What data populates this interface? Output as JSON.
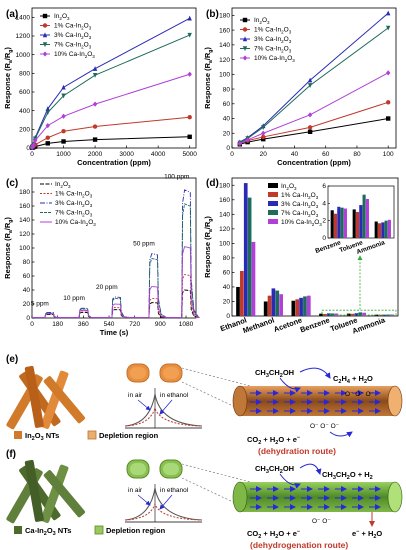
{
  "colors": {
    "In2O3": "#000000",
    "Ca1": "#c0392b",
    "Ca3": "#2a2ab5",
    "Ca7": "#1e6b5c",
    "Ca10": "#b040d8",
    "ntOrange": "#d07a2a",
    "ntGreen": "#5f7f3a",
    "tubeGreen": "#6aa83a",
    "arrowBlue": "#2828d8"
  },
  "chart_data": [
    {
      "panel": "(a)",
      "type": "line",
      "xlabel": "Concentration (ppm)",
      "ylabel": "Response (Ra/Rg)",
      "xlim": [
        0,
        5200
      ],
      "ylim": [
        0,
        1500
      ],
      "xticks": [
        0,
        1000,
        2000,
        3000,
        4000,
        5000
      ],
      "yticks": [
        0,
        200,
        400,
        600,
        800,
        1000,
        1200,
        1400
      ],
      "x": [
        5,
        10,
        20,
        50,
        100,
        500,
        1000,
        2000,
        5000
      ],
      "series": [
        {
          "name": "In2O3",
          "values": [
            3,
            4,
            6,
            10,
            15,
            50,
            70,
            90,
            120
          ]
        },
        {
          "name": "1% Ca-In2O3",
          "values": [
            5,
            7,
            10,
            20,
            35,
            110,
            180,
            230,
            330
          ]
        },
        {
          "name": "3% Ca-In2O3",
          "values": [
            8,
            12,
            20,
            45,
            110,
            420,
            650,
            850,
            1390
          ]
        },
        {
          "name": "7% Ca-In2O3",
          "values": [
            7,
            11,
            18,
            40,
            100,
            380,
            560,
            780,
            1210
          ]
        },
        {
          "name": "10% Ca-In2O3",
          "values": [
            6,
            9,
            14,
            30,
            80,
            240,
            340,
            470,
            790
          ]
        }
      ]
    },
    {
      "panel": "(b)",
      "type": "line",
      "xlabel": "Concentration (ppm)",
      "ylabel": "Response (Ra/Rg)",
      "xlim": [
        0,
        105
      ],
      "ylim": [
        0,
        190
      ],
      "xticks": [
        0,
        20,
        40,
        60,
        80,
        100
      ],
      "yticks": [
        0,
        20,
        40,
        60,
        80,
        100,
        120,
        140,
        160,
        180
      ],
      "x": [
        5,
        10,
        20,
        50,
        100
      ],
      "series": [
        {
          "name": "In2O3",
          "values": [
            5,
            8,
            12,
            22,
            40
          ]
        },
        {
          "name": "1% Ca-In2O3",
          "values": [
            6,
            10,
            15,
            28,
            62
          ]
        },
        {
          "name": "3% Ca-In2O3",
          "values": [
            8,
            14,
            30,
            92,
            183
          ]
        },
        {
          "name": "7% Ca-In2O3",
          "values": [
            7,
            13,
            28,
            85,
            163
          ]
        },
        {
          "name": "10% Ca-In2O3",
          "values": [
            6,
            11,
            20,
            45,
            102
          ]
        }
      ]
    },
    {
      "panel": "(c)",
      "type": "line",
      "xlabel": "Time (s)",
      "ylabel": "Response (Ra/Rg)",
      "xlim": [
        0,
        1150
      ],
      "ylim": [
        0,
        200
      ],
      "xticks": [
        0,
        180,
        360,
        540,
        720,
        900,
        1080
      ],
      "yticks": [
        0,
        20,
        40,
        60,
        80,
        100,
        120,
        140,
        160,
        180
      ],
      "pulses": [
        {
          "label": "5 ppm",
          "start": 90,
          "end": 150
        },
        {
          "label": "10 ppm",
          "start": 330,
          "end": 390
        },
        {
          "label": "20 ppm",
          "start": 560,
          "end": 620
        },
        {
          "label": "50 ppm",
          "start": 820,
          "end": 880
        },
        {
          "label": "100 ppm",
          "start": 1050,
          "end": 1110
        }
      ],
      "series": [
        {
          "name": "In2O3",
          "peaks": [
            5,
            8,
            12,
            22,
            40
          ]
        },
        {
          "name": "1% Ca-In2O3",
          "peaks": [
            6,
            10,
            15,
            28,
            62
          ]
        },
        {
          "name": "3% Ca-In2O3",
          "peaks": [
            8,
            14,
            30,
            92,
            183
          ]
        },
        {
          "name": "7% Ca-In2O3",
          "peaks": [
            7,
            13,
            28,
            85,
            163
          ]
        },
        {
          "name": "10% Ca-In2O3",
          "peaks": [
            6,
            11,
            20,
            45,
            102
          ]
        }
      ]
    },
    {
      "panel": "(d)",
      "type": "bar",
      "xlabel": "",
      "ylabel": "Response (Ra/Rg)",
      "ylim": [
        0,
        190
      ],
      "yticks": [
        0,
        20,
        40,
        60,
        80,
        100,
        120,
        140,
        160,
        180
      ],
      "categories": [
        "Ethanol",
        "Methanol",
        "Acetone",
        "Benzene",
        "Toluene",
        "Ammonia"
      ],
      "series": [
        {
          "name": "In2O3",
          "values": [
            40,
            20,
            21,
            3.2,
            3.3,
            1.9
          ]
        },
        {
          "name": "1% Ca-In2O3",
          "values": [
            62,
            28,
            23,
            2.8,
            3.0,
            1.7
          ]
        },
        {
          "name": "3% Ca-In2O3",
          "values": [
            183,
            38,
            25,
            3.6,
            3.8,
            1.8
          ]
        },
        {
          "name": "7% Ca-In2O3",
          "values": [
            163,
            35,
            27,
            3.5,
            5.0,
            2.0
          ]
        },
        {
          "name": "10% Ca-In2O3",
          "values": [
            102,
            30,
            28,
            3.4,
            4.5,
            2.1
          ]
        }
      ],
      "inset": {
        "categories": [
          "Benzene",
          "Toluene",
          "Ammonia"
        ],
        "ylim": [
          0,
          6
        ],
        "yticks": [
          0,
          2,
          4,
          6
        ]
      }
    }
  ],
  "panels": {
    "a": "(a)",
    "b": "(b)",
    "c": "(c)",
    "d": "(d)",
    "e": "(e)",
    "f": "(f)"
  },
  "legend": {
    "s0_base": "In",
    "s0_sub1": "2",
    "s0_mid": "O",
    "s0_sub2": "3",
    "s1_pre": "1% Ca-In",
    "s3_pre": "3% Ca-In",
    "s7_pre": "7% Ca-In",
    "s10_pre": "10% Ca-In",
    "sub2": "2",
    "o": "O",
    "sub3": "3"
  },
  "axis": {
    "ylabel_main": "Response (R",
    "ylabel_a": "a",
    "ylabel_slash": "/R",
    "ylabel_g": "g",
    "ylabel_close": ")",
    "conc": "Concentration (ppm)",
    "time": "Time (s)"
  },
  "diagram_e": {
    "legend_nt": "In2O3 NTs",
    "legend_dep": "Depletion region",
    "in_air": "in air",
    "in_ethanol": "in ethanol",
    "ethanol": "CH3CH2OH",
    "product_top": "C2H4 + H2O",
    "product_bottom": "CO2 + H2O + e",
    "route": "(dehydration route)"
  },
  "diagram_f": {
    "legend_nt": "Ca-In2O3 NTs",
    "legend_dep": "Depletion region",
    "in_air": "in air",
    "in_ethanol": "in ethanol",
    "ethanol": "CH3CH2OH",
    "product_top": "CH3CH2O + H2",
    "product_bottom": "CO2 + H2O + e",
    "product_right": "e + H2O",
    "route": "(dehydrogenation route)"
  }
}
